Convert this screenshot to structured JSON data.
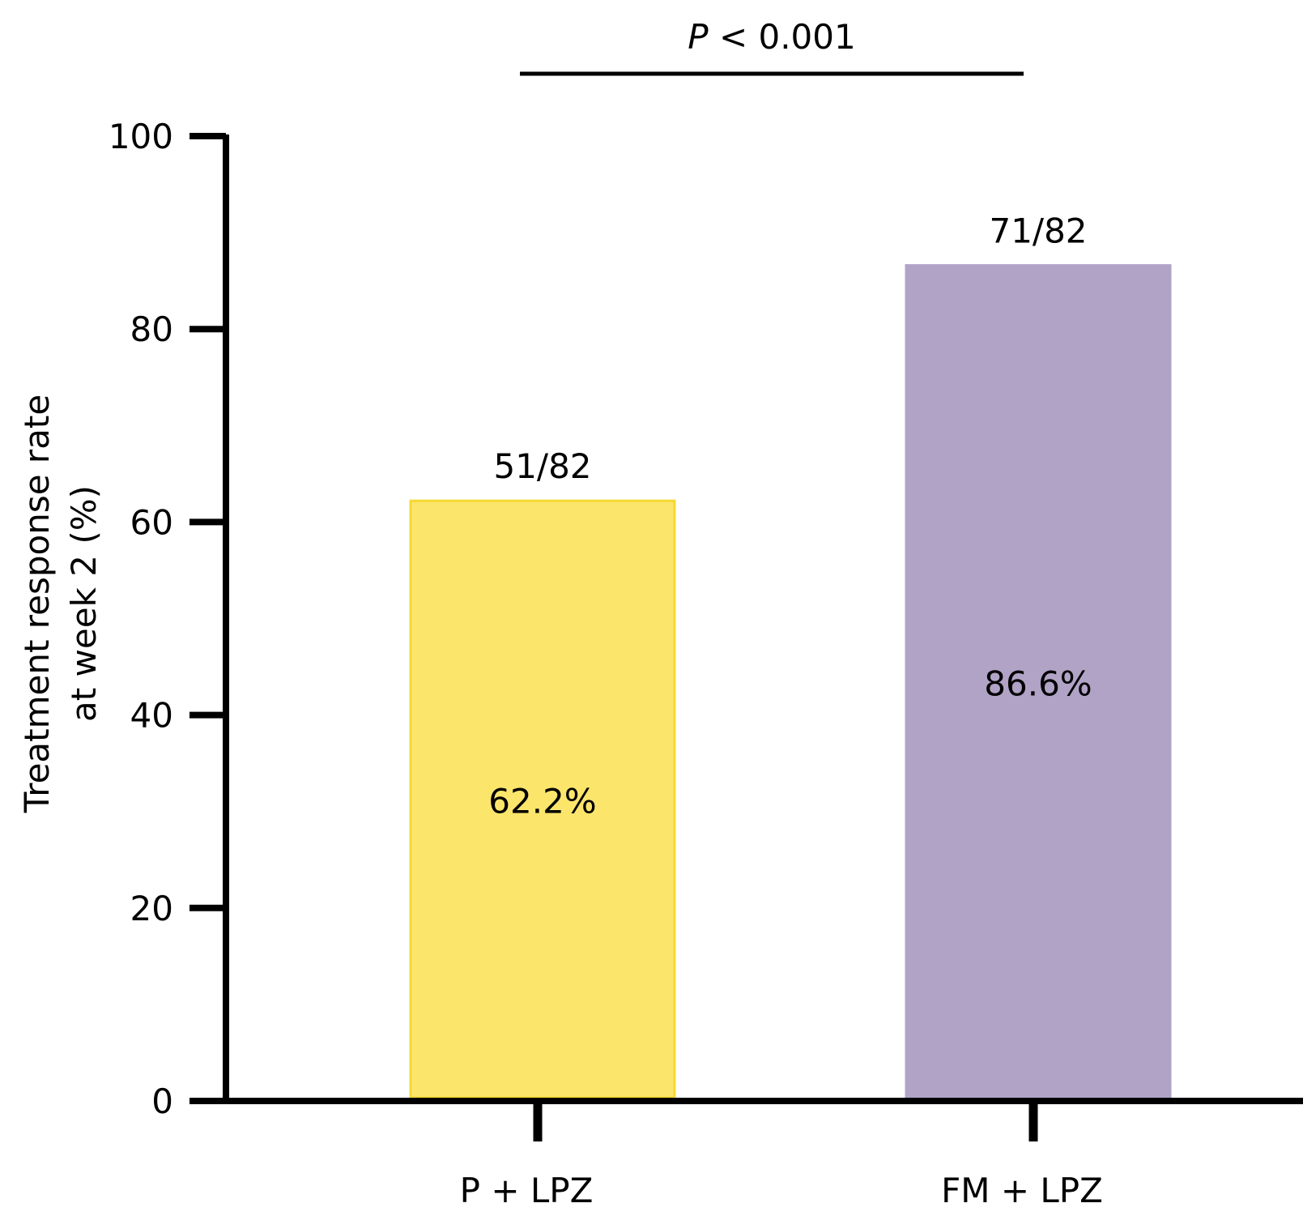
{
  "chart_data": {
    "type": "bar",
    "categories": [
      "P + LPZ",
      "FM + LPZ"
    ],
    "values": [
      62.2,
      86.6
    ],
    "value_labels": [
      "62.2%",
      "86.6%"
    ],
    "count_labels": [
      "51/82",
      "71/82"
    ],
    "colors": [
      "#FCE56B",
      "#B1A3C6"
    ],
    "bar_edge_colors": [
      "#F5D833",
      "#B1A3C6"
    ],
    "ylabel_lines": [
      "Treatment response rate",
      "at week 2 (%)"
    ],
    "xlabel": "",
    "title": "",
    "ylim": [
      0,
      100
    ],
    "yticks": [
      0,
      20,
      40,
      60,
      80,
      100
    ],
    "ytick_labels": [
      "0",
      "20",
      "40",
      "60",
      "80",
      "100"
    ],
    "grid": false,
    "legend": "none",
    "significance": {
      "p_italic": "P",
      "text": " < 0.001",
      "between": [
        0,
        1
      ]
    }
  }
}
